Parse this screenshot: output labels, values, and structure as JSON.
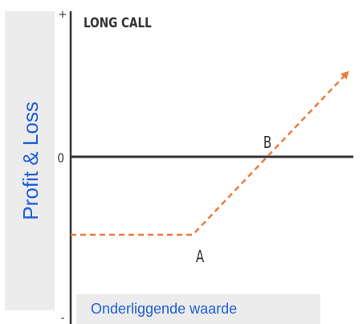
{
  "title": "LONG CALL",
  "y_axis_label": "Profit & Loss",
  "x_axis_label": "Onderliggende waarde",
  "axis_marks": {
    "plus": "+",
    "zero": "0",
    "minus": "-"
  },
  "points": {
    "a": "A",
    "b": "B"
  }
}
